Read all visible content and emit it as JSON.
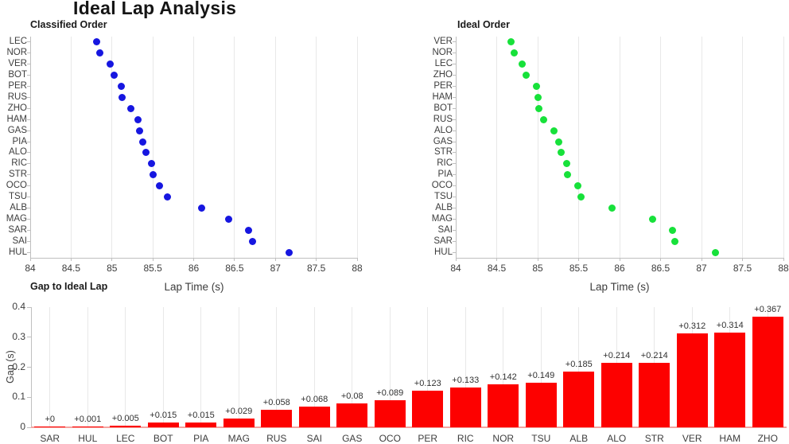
{
  "page": {
    "title": "Ideal Lap Analysis"
  },
  "colors": {
    "background": "#ffffff",
    "classified_dot": "#1616e0",
    "ideal_dot": "#17e13a",
    "bar_fill": "#fd0100",
    "bar_baseline": "#f5a5a0",
    "gridline": "#e8e8e8",
    "axis_line": "#bfbfbf",
    "tick_text": "#3d3d3d",
    "title_text": "#151515",
    "bar_label_text": "#303030"
  },
  "chart_data": [
    {
      "id": "classified_order",
      "type": "scatter",
      "title": "Classified Order",
      "xlabel": "Lap Time (s)",
      "xlim": [
        84,
        88
      ],
      "xticks": [
        84,
        84.5,
        85,
        85.5,
        86,
        86.5,
        87,
        87.5,
        88
      ],
      "xtick_labels": [
        "84",
        "84.5",
        "85",
        "85.5",
        "86",
        "86.5",
        "87",
        "87.5",
        "88"
      ],
      "grid": true,
      "legend": "none",
      "categories": [
        "LEC",
        "NOR",
        "VER",
        "BOT",
        "PER",
        "RUS",
        "ZHO",
        "HAM",
        "GAS",
        "PIA",
        "ALO",
        "RIC",
        "STR",
        "OCO",
        "TSU",
        "ALB",
        "MAG",
        "SAR",
        "SAI",
        "HUL"
      ],
      "values": [
        84.815,
        84.852,
        84.982,
        85.025,
        85.113,
        85.128,
        85.227,
        85.314,
        85.34,
        85.375,
        85.414,
        85.483,
        85.504,
        85.579,
        85.679,
        86.095,
        86.429,
        86.67,
        86.718,
        87.171
      ],
      "dot_color": "#1616e0"
    },
    {
      "id": "ideal_order",
      "type": "scatter",
      "title": "Ideal Order",
      "xlabel": "Lap Time (s)",
      "xlim": [
        84,
        88
      ],
      "xticks": [
        84,
        84.5,
        85,
        85.5,
        86,
        86.5,
        87,
        87.5,
        88
      ],
      "xtick_labels": [
        "84",
        "84.5",
        "85",
        "85.5",
        "86",
        "86.5",
        "87",
        "87.5",
        "88"
      ],
      "grid": true,
      "legend": "none",
      "categories": [
        "VER",
        "NOR",
        "LEC",
        "ZHO",
        "PER",
        "HAM",
        "BOT",
        "RUS",
        "ALO",
        "GAS",
        "STR",
        "RIC",
        "PIA",
        "OCO",
        "TSU",
        "ALB",
        "MAG",
        "SAI",
        "SAR",
        "HUL"
      ],
      "values": [
        84.67,
        84.71,
        84.81,
        84.86,
        84.99,
        85.0,
        85.01,
        85.07,
        85.2,
        85.26,
        85.29,
        85.35,
        85.36,
        85.49,
        85.53,
        85.91,
        86.4,
        86.65,
        86.67,
        87.17
      ],
      "dot_color": "#17e13a"
    },
    {
      "id": "gap_to_ideal_lap",
      "type": "bar",
      "title": "Gap to Ideal Lap",
      "ylabel": "Gap (s)",
      "ylim": [
        0,
        0.4
      ],
      "yticks": [
        0,
        0.1,
        0.2,
        0.3,
        0.4
      ],
      "ytick_labels": [
        "0",
        "0.1",
        "0.2",
        "0.3",
        "0.4"
      ],
      "grid": true,
      "legend": "none",
      "categories": [
        "SAR",
        "HUL",
        "LEC",
        "BOT",
        "PIA",
        "MAG",
        "RUS",
        "SAI",
        "GAS",
        "OCO",
        "PER",
        "RIC",
        "NOR",
        "TSU",
        "ALB",
        "ALO",
        "STR",
        "VER",
        "HAM",
        "ZHO"
      ],
      "values": [
        0,
        0.001,
        0.005,
        0.015,
        0.015,
        0.029,
        0.058,
        0.068,
        0.08,
        0.089,
        0.123,
        0.133,
        0.142,
        0.149,
        0.185,
        0.214,
        0.214,
        0.312,
        0.314,
        0.367
      ],
      "bar_labels": [
        "+0",
        "+0.001",
        "+0.005",
        "+0.015",
        "+0.015",
        "+0.029",
        "+0.058",
        "+0.068",
        "+0.08",
        "+0.089",
        "+0.123",
        "+0.133",
        "+0.142",
        "+0.149",
        "+0.185",
        "+0.214",
        "+0.214",
        "+0.312",
        "+0.314",
        "+0.367"
      ],
      "bar_color": "#fd0100"
    }
  ]
}
